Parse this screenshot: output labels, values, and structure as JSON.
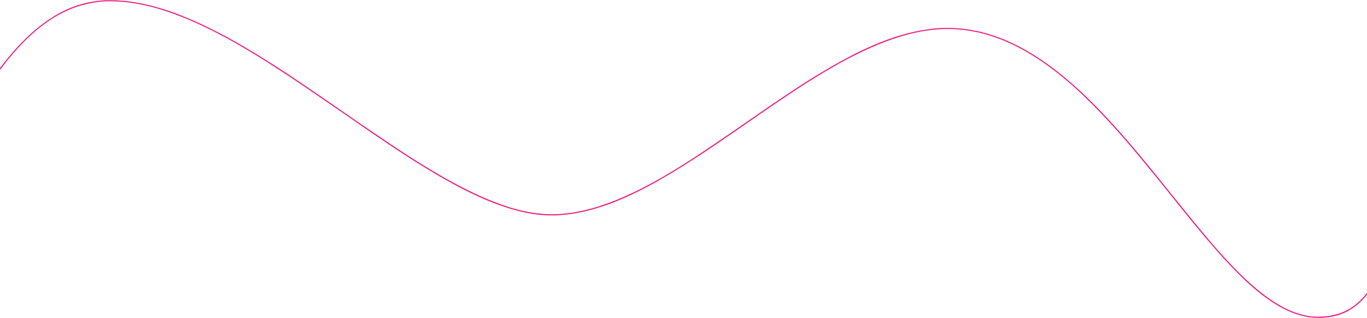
{
  "decoration": {
    "type": "wavy-line",
    "stroke_color": "#e8197d",
    "background_color": "#ffffff"
  }
}
